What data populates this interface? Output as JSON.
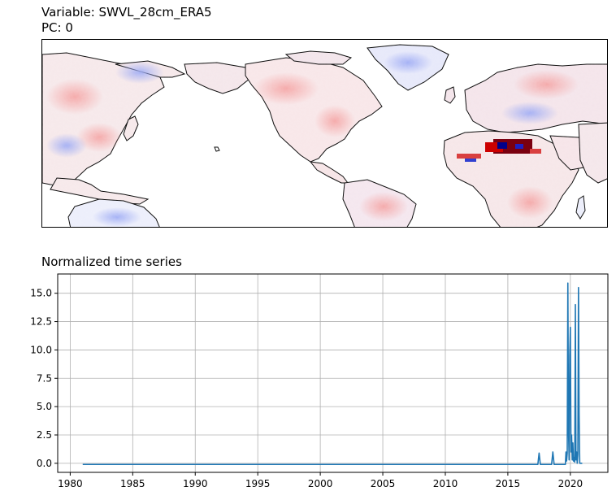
{
  "titles": {
    "map_title_line1": "Variable: SWVL_28cm_ERA5",
    "map_title_line2": "PC: 0",
    "timeseries_title": "Normalized time series"
  },
  "colors": {
    "line": "#1f77b4",
    "grid": "#b0b0b0",
    "map_positive": "#cc0000",
    "map_negative": "#0000cc",
    "coastline": "#000000"
  },
  "chart_data": [
    {
      "type": "heatmap",
      "title": "Variable: SWVL_28cm_ERA5",
      "subtitle": "PC: 0",
      "colormap": "seismic (blue-white-red, diverging)",
      "projection": "PlateCarree, centered on Pacific",
      "notable_features": [
        "strong red/dark-red anomaly over Sahara",
        "blue patches over Siberia and Greenland"
      ]
    },
    {
      "type": "line",
      "title": "Normalized time series",
      "xlabel": "",
      "ylabel": "",
      "xlim": [
        1979,
        2023
      ],
      "ylim": [
        -0.8,
        16.7
      ],
      "grid": true,
      "x_ticks": [
        1980,
        1985,
        1990,
        1995,
        2000,
        2005,
        2010,
        2015,
        2020
      ],
      "x_tick_labels": [
        "1980",
        "1985",
        "1990",
        "1995",
        "2000",
        "2005",
        "2010",
        "2015",
        "2020"
      ],
      "y_ticks": [
        0,
        2.5,
        5,
        7.5,
        10,
        12.5,
        15
      ],
      "y_tick_labels": [
        "0.0",
        "2.5",
        "5.0",
        "7.5",
        "10.0",
        "12.5",
        "15.0"
      ],
      "series": [
        {
          "x": [
            1981.0,
            1990.0,
            2000.0,
            2010.0,
            2017.4,
            2017.5,
            2017.6,
            2018.5,
            2018.6,
            2018.7,
            2019.6,
            2019.65,
            2019.7,
            2019.75,
            2019.8,
            2019.85,
            2019.9,
            2019.95,
            2020.0,
            2020.05,
            2020.1,
            2020.15,
            2020.2,
            2020.25,
            2020.3,
            2020.35,
            2020.4,
            2020.45,
            2020.5,
            2020.55,
            2020.6,
            2020.65,
            2020.7,
            2020.75,
            2020.8,
            2020.85,
            2020.9,
            2020.95
          ],
          "y": [
            -0.1,
            -0.1,
            -0.1,
            -0.1,
            -0.1,
            0.9,
            -0.1,
            -0.1,
            1.0,
            -0.1,
            -0.1,
            1.0,
            0.2,
            0.9,
            15.9,
            3.0,
            0.3,
            9.5,
            12.0,
            1.0,
            2.5,
            0.3,
            1.8,
            0.2,
            0.5,
            0.1,
            14.0,
            0.3,
            1.0,
            0.0,
            0.8,
            15.5,
            4.3,
            0.0,
            0.0,
            0.0,
            0.0,
            0.0
          ]
        }
      ]
    }
  ]
}
